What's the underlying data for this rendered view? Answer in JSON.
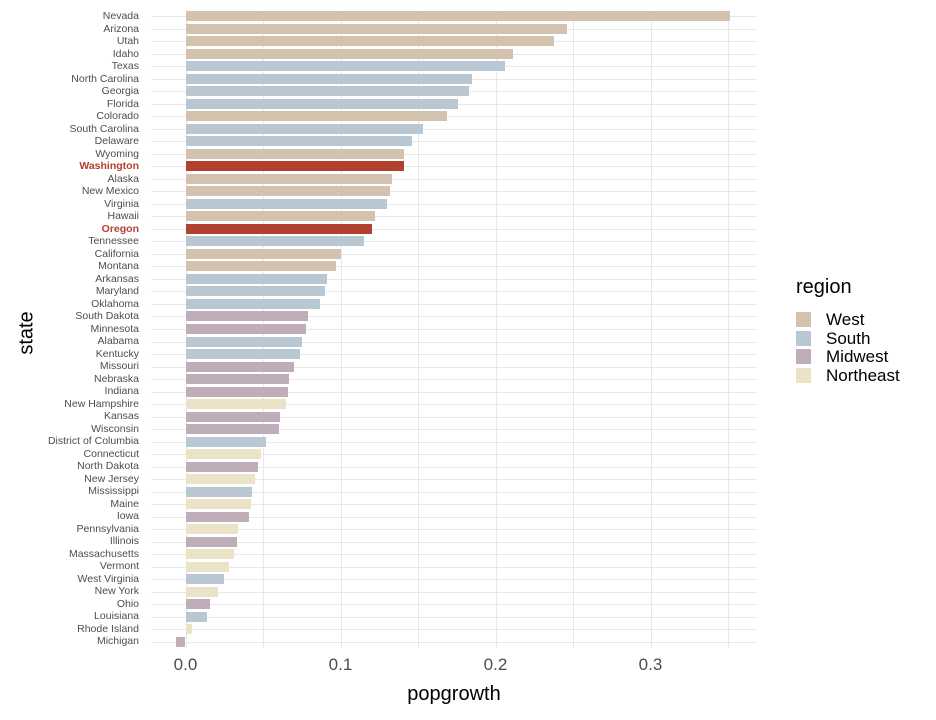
{
  "figure": {
    "background": "#ffffff"
  },
  "colors": {
    "grid": "#e8e8e8",
    "axis_text": "#4d4d4d",
    "title_text": "#000000",
    "highlight": "#b2402f"
  },
  "chart_data": {
    "type": "bar",
    "orientation": "horizontal",
    "title": "",
    "xlabel": "popgrowth",
    "ylabel": "state",
    "grid": true,
    "xlim": [
      -0.022,
      0.369
    ],
    "x_ticks": [
      {
        "value": 0.0,
        "label": "0.0"
      },
      {
        "value": 0.1,
        "label": "0.1"
      },
      {
        "value": 0.2,
        "label": "0.2"
      },
      {
        "value": 0.3,
        "label": "0.3"
      }
    ],
    "x_minor_ticks": [
      0.05,
      0.15,
      0.25,
      0.35
    ],
    "legend": {
      "title": "region",
      "position": "right",
      "entries": [
        {
          "label": "West",
          "color": "#d3c2ae"
        },
        {
          "label": "South",
          "color": "#b8c7d1"
        },
        {
          "label": "Midwest",
          "color": "#bfadb9"
        },
        {
          "label": "Northeast",
          "color": "#ebe3c7"
        }
      ]
    },
    "highlight": {
      "states": [
        "Washington",
        "Oregon"
      ],
      "color": "#b2402f"
    },
    "states": [
      {
        "name": "Nevada",
        "region": "West",
        "value": 0.351
      },
      {
        "name": "Arizona",
        "region": "West",
        "value": 0.246
      },
      {
        "name": "Utah",
        "region": "West",
        "value": 0.238
      },
      {
        "name": "Idaho",
        "region": "West",
        "value": 0.211
      },
      {
        "name": "Texas",
        "region": "South",
        "value": 0.206
      },
      {
        "name": "North Carolina",
        "region": "South",
        "value": 0.185
      },
      {
        "name": "Georgia",
        "region": "South",
        "value": 0.183
      },
      {
        "name": "Florida",
        "region": "South",
        "value": 0.176
      },
      {
        "name": "Colorado",
        "region": "West",
        "value": 0.169
      },
      {
        "name": "South Carolina",
        "region": "South",
        "value": 0.153
      },
      {
        "name": "Delaware",
        "region": "South",
        "value": 0.146
      },
      {
        "name": "Wyoming",
        "region": "West",
        "value": 0.141
      },
      {
        "name": "Washington",
        "region": "West",
        "value": 0.141
      },
      {
        "name": "Alaska",
        "region": "West",
        "value": 0.133
      },
      {
        "name": "New Mexico",
        "region": "West",
        "value": 0.132
      },
      {
        "name": "Virginia",
        "region": "South",
        "value": 0.13
      },
      {
        "name": "Hawaii",
        "region": "West",
        "value": 0.122
      },
      {
        "name": "Oregon",
        "region": "West",
        "value": 0.12
      },
      {
        "name": "Tennessee",
        "region": "South",
        "value": 0.115
      },
      {
        "name": "California",
        "region": "West",
        "value": 0.1
      },
      {
        "name": "Montana",
        "region": "West",
        "value": 0.097
      },
      {
        "name": "Arkansas",
        "region": "South",
        "value": 0.091
      },
      {
        "name": "Maryland",
        "region": "South",
        "value": 0.09
      },
      {
        "name": "Oklahoma",
        "region": "South",
        "value": 0.087
      },
      {
        "name": "South Dakota",
        "region": "Midwest",
        "value": 0.079
      },
      {
        "name": "Minnesota",
        "region": "Midwest",
        "value": 0.078
      },
      {
        "name": "Alabama",
        "region": "South",
        "value": 0.075
      },
      {
        "name": "Kentucky",
        "region": "South",
        "value": 0.074
      },
      {
        "name": "Missouri",
        "region": "Midwest",
        "value": 0.07
      },
      {
        "name": "Nebraska",
        "region": "Midwest",
        "value": 0.067
      },
      {
        "name": "Indiana",
        "region": "Midwest",
        "value": 0.066
      },
      {
        "name": "New Hampshire",
        "region": "Northeast",
        "value": 0.065
      },
      {
        "name": "Kansas",
        "region": "Midwest",
        "value": 0.061
      },
      {
        "name": "Wisconsin",
        "region": "Midwest",
        "value": 0.06
      },
      {
        "name": "District of Columbia",
        "region": "South",
        "value": 0.052
      },
      {
        "name": "Connecticut",
        "region": "Northeast",
        "value": 0.049
      },
      {
        "name": "North Dakota",
        "region": "Midwest",
        "value": 0.047
      },
      {
        "name": "New Jersey",
        "region": "Northeast",
        "value": 0.045
      },
      {
        "name": "Mississippi",
        "region": "South",
        "value": 0.043
      },
      {
        "name": "Maine",
        "region": "Northeast",
        "value": 0.042
      },
      {
        "name": "Iowa",
        "region": "Midwest",
        "value": 0.041
      },
      {
        "name": "Pennsylvania",
        "region": "Northeast",
        "value": 0.034
      },
      {
        "name": "Illinois",
        "region": "Midwest",
        "value": 0.033
      },
      {
        "name": "Massachusetts",
        "region": "Northeast",
        "value": 0.031
      },
      {
        "name": "Vermont",
        "region": "Northeast",
        "value": 0.028
      },
      {
        "name": "West Virginia",
        "region": "South",
        "value": 0.025
      },
      {
        "name": "New York",
        "region": "Northeast",
        "value": 0.021
      },
      {
        "name": "Ohio",
        "region": "Midwest",
        "value": 0.016
      },
      {
        "name": "Louisiana",
        "region": "South",
        "value": 0.014
      },
      {
        "name": "Rhode Island",
        "region": "Northeast",
        "value": 0.004
      },
      {
        "name": "Michigan",
        "region": "Midwest",
        "value": -0.006
      }
    ]
  }
}
